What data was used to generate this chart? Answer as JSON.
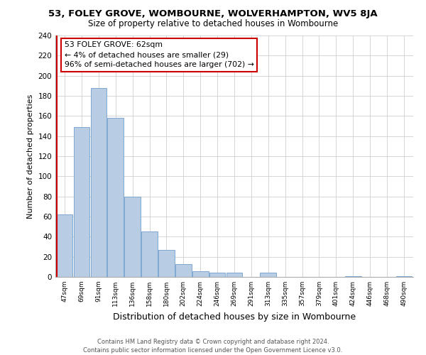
{
  "title": "53, FOLEY GROVE, WOMBOURNE, WOLVERHAMPTON, WV5 8JA",
  "subtitle": "Size of property relative to detached houses in Wombourne",
  "xlabel": "Distribution of detached houses by size in Wombourne",
  "ylabel": "Number of detached properties",
  "bar_labels": [
    "47sqm",
    "69sqm",
    "91sqm",
    "113sqm",
    "136sqm",
    "158sqm",
    "180sqm",
    "202sqm",
    "224sqm",
    "246sqm",
    "269sqm",
    "291sqm",
    "313sqm",
    "335sqm",
    "357sqm",
    "379sqm",
    "401sqm",
    "424sqm",
    "446sqm",
    "468sqm",
    "490sqm"
  ],
  "bar_values": [
    62,
    149,
    188,
    158,
    80,
    45,
    27,
    13,
    6,
    4,
    4,
    0,
    4,
    0,
    0,
    0,
    0,
    1,
    0,
    0,
    1
  ],
  "bar_color": "#b8cce4",
  "bar_edge_color": "#7fa8d0",
  "highlight_color": "#cc0000",
  "annotation_title": "53 FOLEY GROVE: 62sqm",
  "annotation_line1": "← 4% of detached houses are smaller (29)",
  "annotation_line2": "96% of semi-detached houses are larger (702) →",
  "annotation_box_color": "#ffffff",
  "annotation_box_edge": "#cc0000",
  "ylim": [
    0,
    240
  ],
  "yticks": [
    0,
    20,
    40,
    60,
    80,
    100,
    120,
    140,
    160,
    180,
    200,
    220,
    240
  ],
  "footer_line1": "Contains HM Land Registry data © Crown copyright and database right 2024.",
  "footer_line2": "Contains public sector information licensed under the Open Government Licence v3.0.",
  "bg_color": "#ffffff",
  "grid_color": "#d0d0d0"
}
